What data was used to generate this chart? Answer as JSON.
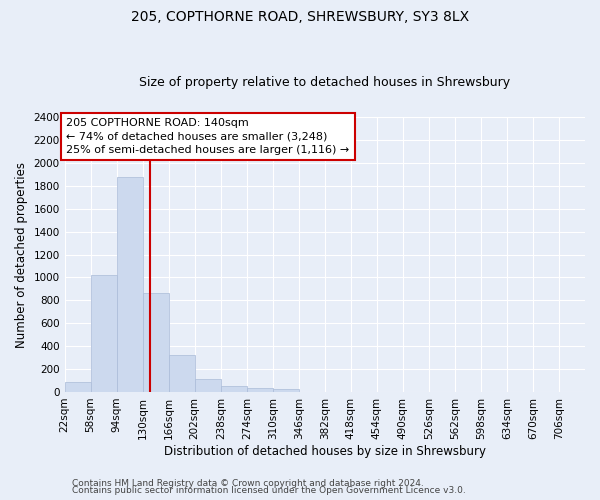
{
  "title": "205, COPTHORNE ROAD, SHREWSBURY, SY3 8LX",
  "subtitle": "Size of property relative to detached houses in Shrewsbury",
  "xlabel": "Distribution of detached houses by size in Shrewsbury",
  "ylabel": "Number of detached properties",
  "bar_edges": [
    22,
    58,
    94,
    130,
    166,
    202,
    238,
    274,
    310,
    346,
    382,
    418,
    454,
    490,
    526,
    562,
    598,
    634,
    670,
    706,
    742
  ],
  "bar_heights": [
    90,
    1020,
    1880,
    860,
    320,
    115,
    50,
    35,
    30,
    0,
    0,
    0,
    0,
    0,
    0,
    0,
    0,
    0,
    0,
    0
  ],
  "bar_color": "#ccd9ee",
  "bar_edge_color": "#aabbd8",
  "property_line_x": 140,
  "property_line_color": "#cc0000",
  "annotation_text": "205 COPTHORNE ROAD: 140sqm\n← 74% of detached houses are smaller (3,248)\n25% of semi-detached houses are larger (1,116) →",
  "annotation_box_facecolor": "#ffffff",
  "annotation_box_edgecolor": "#cc0000",
  "ylim": [
    0,
    2400
  ],
  "yticks": [
    0,
    200,
    400,
    600,
    800,
    1000,
    1200,
    1400,
    1600,
    1800,
    2000,
    2200,
    2400
  ],
  "footer_line1": "Contains HM Land Registry data © Crown copyright and database right 2024.",
  "footer_line2": "Contains public sector information licensed under the Open Government Licence v3.0.",
  "bg_color": "#e8eef8",
  "plot_bg_color": "#e8eef8",
  "grid_color": "#ffffff",
  "title_fontsize": 10,
  "subtitle_fontsize": 9,
  "axis_label_fontsize": 8.5,
  "tick_label_fontsize": 7.5,
  "annotation_fontsize": 8,
  "footer_fontsize": 6.5
}
